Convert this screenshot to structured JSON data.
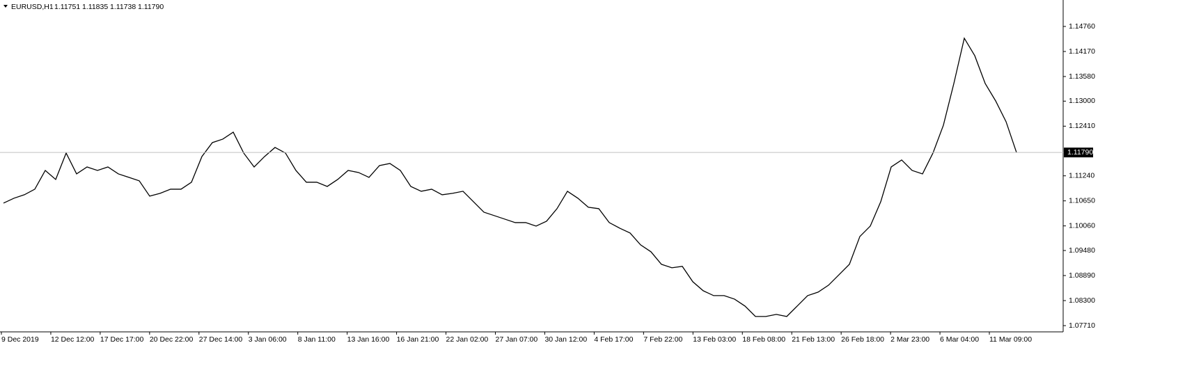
{
  "chart_data": {
    "type": "line",
    "symbol": "EURUSD,H1",
    "ohlc": [
      1.11751,
      1.11835,
      1.11738,
      {
        "value": 1.1179,
        "label": "1.11790"
      }
    ],
    "color": "#000000",
    "ylim": [
      1.07563,
      1.15383
    ],
    "yticks": [
      {
        "value": 1.1476,
        "label": "1.14760"
      },
      {
        "value": 1.1417,
        "label": "1.14170"
      },
      {
        "value": 1.1358,
        "label": "1.13580"
      },
      {
        "value": 1.13,
        "label": "1.13000"
      },
      {
        "value": 1.1241,
        "label": "1.12410"
      },
      {
        "value": 1.1124,
        "label": "1.11240"
      },
      {
        "value": 1.1065,
        "label": "1.10650"
      },
      {
        "value": 1.1006,
        "label": "1.10060"
      },
      {
        "value": 1.0948,
        "label": "1.09480"
      },
      {
        "value": 1.0889,
        "label": "1.08890"
      },
      {
        "value": 1.083,
        "label": "1.08300"
      },
      {
        "value": 1.0771,
        "label": "1.07710"
      }
    ],
    "current_price": {
      "value": 1.1179,
      "label": "1.11790"
    },
    "x_labels": [
      "9 Dec 2019",
      "12 Dec 12:00",
      "17 Dec 17:00",
      "20 Dec 22:00",
      "27 Dec 14:00",
      "3 Jan 06:00",
      "8 Jan 11:00",
      "13 Jan 16:00",
      "16 Jan 21:00",
      "22 Jan 02:00",
      "27 Jan 07:00",
      "30 Jan 12:00",
      "4 Feb 17:00",
      "7 Feb 22:00",
      "13 Feb 03:00",
      "18 Feb 08:00",
      "21 Feb 13:00",
      "26 Feb 18:00",
      "2 Mar 23:00",
      "6 Mar 04:00",
      "11 Mar 09:00"
    ],
    "values": [
      1.10597,
      1.10712,
      1.10794,
      1.10925,
      1.11367,
      1.11154,
      1.11777,
      1.11285,
      1.11449,
      1.11367,
      1.11449,
      1.11285,
      1.11204,
      1.11122,
      1.10761,
      1.10827,
      1.10925,
      1.10925,
      1.11089,
      1.11695,
      1.12023,
      1.12105,
      1.12269,
      1.11777,
      1.11449,
      1.11695,
      1.11908,
      1.11777,
      1.11367,
      1.11089,
      1.11089,
      1.1099,
      1.11154,
      1.11367,
      1.11318,
      1.11204,
      1.11482,
      1.11531,
      1.11367,
      1.1099,
      1.10876,
      1.10925,
      1.10794,
      1.10827,
      1.10876,
      1.1063,
      1.10384,
      1.10302,
      1.1022,
      1.10138,
      1.10138,
      1.10056,
      1.10171,
      1.10466,
      1.10876,
      1.10712,
      1.10499,
      1.10466,
      1.10138,
      1.10007,
      1.09892,
      1.09614,
      1.0945,
      1.09155,
      1.09073,
      1.09106,
      1.08745,
      1.08532,
      1.08417,
      1.08417,
      1.08335,
      1.08171,
      1.07926,
      1.07926,
      1.07975,
      1.07926,
      1.08171,
      1.08417,
      1.08499,
      1.08663,
      1.08909,
      1.09155,
      1.0981,
      1.10056,
      1.1063,
      1.11449,
      1.11613,
      1.11367,
      1.11285,
      1.11777,
      1.12433,
      1.13416,
      1.14482,
      1.14072,
      1.13416,
      1.13006,
      1.12515,
      1.1179
    ]
  }
}
